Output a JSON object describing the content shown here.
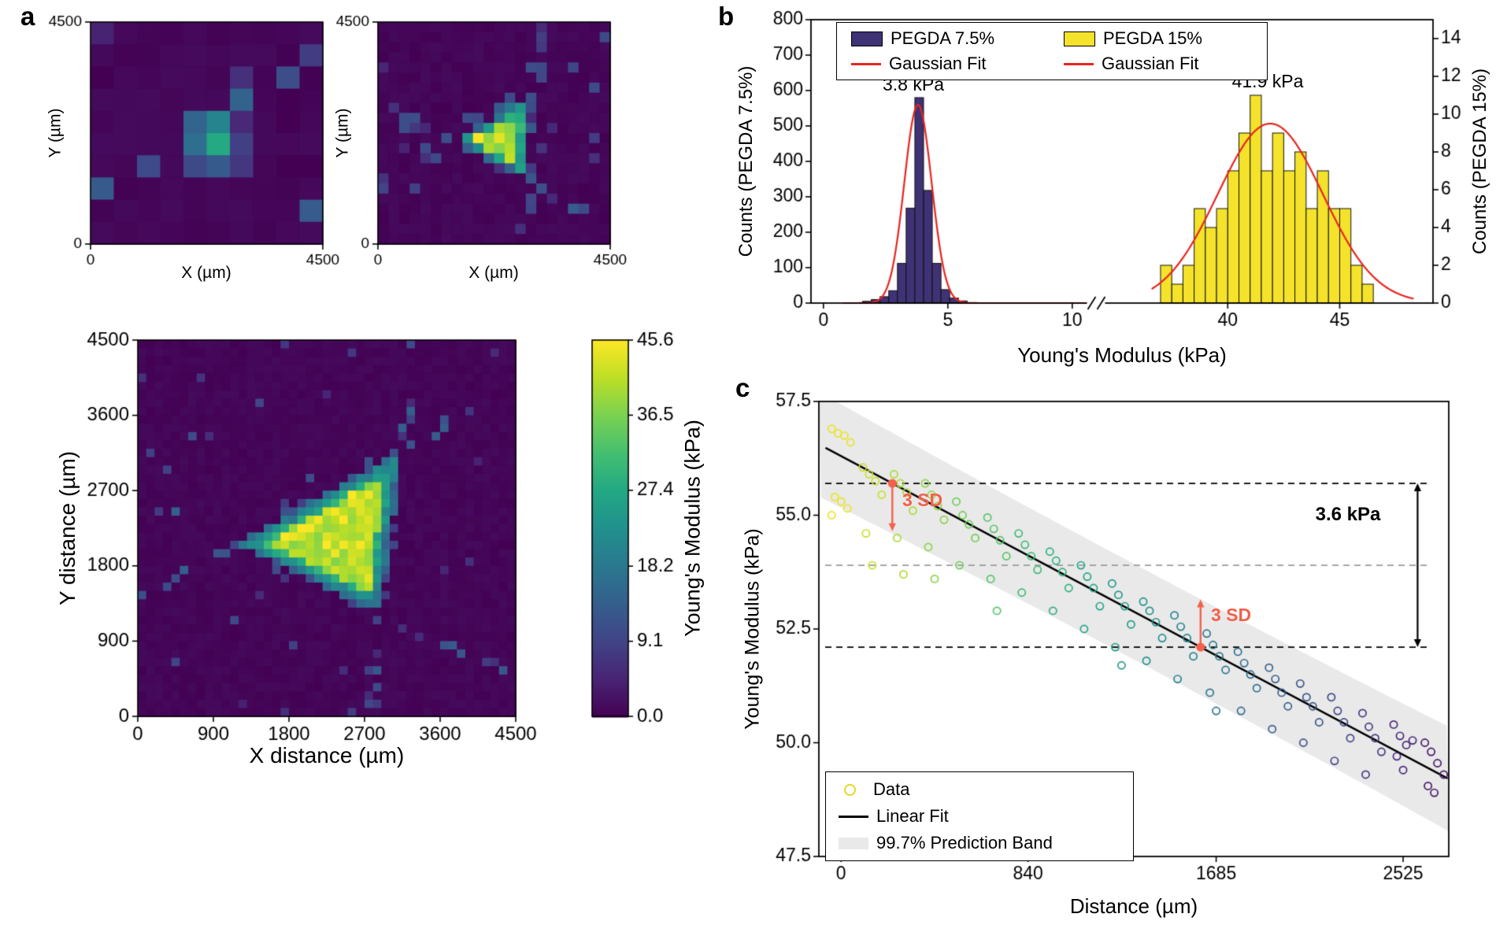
{
  "figure": {
    "panel_a": "a",
    "panel_b": "b",
    "panel_c": "c"
  },
  "colorbar": {
    "title": "Young's Modulus (kPa)",
    "tick_values": [
      0.0,
      9.1,
      18.2,
      27.4,
      36.5,
      45.6
    ],
    "vmin": 0.0,
    "vmax": 45.6
  },
  "chart_data": [
    {
      "id": "map_small_coarse",
      "type": "heatmap",
      "panel": "a",
      "xlabel": "X (µm)",
      "ylabel": "Y (µm)",
      "extent_um": [
        0,
        4500
      ],
      "xticks": [
        0,
        4500
      ],
      "yticks": [
        0,
        4500
      ],
      "grid": 10,
      "vmin_kpa": 0,
      "vmax_kpa": 45.6,
      "triangle_vertices_um": [
        [
          1500,
          2150
        ],
        [
          2950,
          3050
        ],
        [
          2850,
          1350
        ]
      ],
      "edge_band_um": 430,
      "interior_kpa": [
        29,
        45
      ],
      "edge_kpa": [
        13,
        29
      ],
      "seed": 7
    },
    {
      "id": "map_small_fine",
      "type": "heatmap",
      "panel": "a",
      "xlabel": "X (µm)",
      "ylabel": "Y (µm)",
      "extent_um": [
        0,
        4500
      ],
      "xticks": [
        0,
        4500
      ],
      "yticks": [
        0,
        4500
      ],
      "grid": 22,
      "vmin_kpa": 0,
      "vmax_kpa": 45.6,
      "triangle_vertices_um": [
        [
          1400,
          2050
        ],
        [
          3000,
          3100
        ],
        [
          2870,
          1300
        ]
      ],
      "edge_band_um": 215,
      "interior_kpa": [
        36,
        45.6
      ],
      "edge_kpa": [
        12,
        30
      ],
      "seed": 11
    },
    {
      "id": "map_large",
      "type": "heatmap",
      "panel": "a",
      "xlabel": "X distance (µm)",
      "ylabel": "Y distance (µm)",
      "extent_um": [
        0,
        4500
      ],
      "xticks": [
        0,
        900,
        1800,
        2700,
        3600,
        4500
      ],
      "yticks": [
        0,
        900,
        1800,
        2700,
        3600,
        4500
      ],
      "grid": 45,
      "vmin_kpa": 0,
      "vmax_kpa": 45.6,
      "triangle_vertices_um": [
        [
          1150,
          2050
        ],
        [
          3150,
          3200
        ],
        [
          2900,
          1230
        ]
      ],
      "edge_band_um": 175,
      "interior_kpa": [
        37,
        45.6
      ],
      "edge_kpa": [
        12,
        30
      ],
      "seed": 3
    },
    {
      "id": "modulus_histograms",
      "type": "bar",
      "panel": "b",
      "xlabel": "Young's Modulus (kPa)",
      "ylabel_left": "Counts (PEGDA 7.5%)",
      "ylabel_right": "Counts (PEGDA 15%)",
      "ylim_left": [
        0,
        800
      ],
      "yticks_left": [
        0,
        100,
        200,
        300,
        400,
        500,
        600,
        700,
        800
      ],
      "ylim_right": [
        0,
        15
      ],
      "yticks_right": [
        0,
        2,
        4,
        6,
        8,
        10,
        12,
        14
      ],
      "x_axis": {
        "left_segment": {
          "range": [
            0,
            12
          ],
          "ticks": [
            0,
            5,
            10
          ]
        },
        "right_segment": {
          "range": [
            36.5,
            48.5
          ],
          "ticks": [
            40,
            45
          ]
        },
        "break_marker": "//"
      },
      "fit_color": "#e8251f",
      "series": [
        {
          "name": "PEGDA 7.5%",
          "color": "#3f3376",
          "axis": "left",
          "bin_width": 0.35,
          "bin_centers": [
            1.75,
            2.1,
            2.45,
            2.8,
            3.15,
            3.5,
            3.85,
            4.2,
            4.55,
            4.9,
            5.25,
            5.6
          ],
          "counts": [
            5,
            10,
            18,
            35,
            112,
            268,
            580,
            318,
            112,
            38,
            14,
            6
          ],
          "peak_label": "3.8 kPa",
          "gaussian": {
            "center": 3.8,
            "sigma": 0.55,
            "amplitude": 560
          }
        },
        {
          "name": "PEGDA 15%",
          "color": "#f5e32b",
          "axis": "right",
          "bin_width": 0.5,
          "bin_centers": [
            37.25,
            37.75,
            38.25,
            38.75,
            39.25,
            39.75,
            40.25,
            40.75,
            41.25,
            41.75,
            42.25,
            42.75,
            43.25,
            43.75,
            44.25,
            44.75,
            45.25,
            45.75,
            46.25
          ],
          "counts": [
            2,
            1,
            2,
            5,
            4,
            5,
            7,
            9,
            11,
            7,
            9,
            7,
            8,
            5,
            7,
            5,
            5,
            2,
            1
          ],
          "peak_label": "41.9 kPa",
          "gaussian": {
            "center": 41.9,
            "sigma": 2.35,
            "amplitude": 9.5
          }
        }
      ],
      "legend": [
        {
          "label": "PEGDA 7.5%",
          "swatch": "square"
        },
        {
          "label": "PEGDA 15%",
          "swatch": "square"
        },
        {
          "label": "Gaussian Fit",
          "swatch": "line"
        },
        {
          "label": "Gaussian Fit",
          "swatch": "line"
        }
      ]
    },
    {
      "id": "gradient_scatter",
      "type": "scatter",
      "panel": "c",
      "xlabel": "Distance (µm)",
      "ylabel": "Young's Modulus (kPa)",
      "xlim": [
        -100,
        2730
      ],
      "ylim": [
        47.5,
        57.5
      ],
      "xticks": [
        0,
        840,
        1685,
        2525
      ],
      "yticks": [
        47.5,
        50.0,
        52.5,
        55.0,
        57.5
      ],
      "data_marker_color": "#e7d829",
      "accent_color": "#f4604a",
      "fit_line_color": "#000000",
      "linear_fit": {
        "y_at_x0_kpa": 56.3,
        "slope_kpa_per_um": -0.0026
      },
      "prediction_band": {
        "halfwidth_kpa": 1.05,
        "color": "#e9e9e9",
        "label": "99.7% Prediction Band"
      },
      "dashed_lines": {
        "upper_kpa": 55.7,
        "lower_kpa": 52.1,
        "mid_kpa": 53.9
      },
      "sd_markers": [
        {
          "x_um": 230,
          "from_kpa": 55.7,
          "to_kpa": 54.65,
          "label": "3 SD",
          "direction": "down"
        },
        {
          "x_um": 1615,
          "from_kpa": 52.1,
          "to_kpa": 53.15,
          "label": "3 SD",
          "direction": "up"
        }
      ],
      "gap_annotation": {
        "label": "3.6 kPa",
        "x_um": 2590,
        "from_kpa": 55.7,
        "to_kpa": 52.1
      },
      "clusters": [
        {
          "x": 0,
          "values": [
            56.9,
            56.8,
            56.75,
            56.6,
            55.4,
            55.3,
            55.15,
            55.0
          ]
        },
        {
          "x": 140,
          "values": [
            56.05,
            55.9,
            55.75,
            55.45,
            54.6,
            53.9
          ]
        },
        {
          "x": 280,
          "values": [
            55.9,
            55.7,
            55.5,
            55.1,
            54.5,
            53.7
          ]
        },
        {
          "x": 420,
          "values": [
            55.7,
            55.45,
            55.2,
            54.9,
            54.3,
            53.6
          ]
        },
        {
          "x": 560,
          "values": [
            55.3,
            55.0,
            54.8,
            54.5,
            53.9
          ]
        },
        {
          "x": 700,
          "values": [
            54.95,
            54.7,
            54.45,
            54.1,
            53.6,
            52.9
          ]
        },
        {
          "x": 840,
          "values": [
            54.6,
            54.35,
            54.1,
            53.8,
            53.3
          ]
        },
        {
          "x": 980,
          "values": [
            54.2,
            54.0,
            53.75,
            53.4,
            52.9
          ]
        },
        {
          "x": 1120,
          "values": [
            53.9,
            53.65,
            53.4,
            53.0,
            52.5
          ]
        },
        {
          "x": 1260,
          "values": [
            53.5,
            53.25,
            53.0,
            52.6,
            52.1,
            51.7
          ]
        },
        {
          "x": 1400,
          "values": [
            53.1,
            52.9,
            52.65,
            52.3,
            51.8
          ]
        },
        {
          "x": 1540,
          "values": [
            52.8,
            52.55,
            52.3,
            51.9,
            51.4
          ]
        },
        {
          "x": 1685,
          "values": [
            52.4,
            52.15,
            51.9,
            51.6,
            51.1,
            50.7
          ]
        },
        {
          "x": 1825,
          "values": [
            52.0,
            51.75,
            51.5,
            51.2,
            50.7
          ]
        },
        {
          "x": 1965,
          "values": [
            51.65,
            51.4,
            51.1,
            50.8,
            50.3
          ]
        },
        {
          "x": 2105,
          "values": [
            51.3,
            51.0,
            50.8,
            50.45,
            50.0
          ]
        },
        {
          "x": 2245,
          "values": [
            51.0,
            50.7,
            50.45,
            50.1,
            49.6
          ]
        },
        {
          "x": 2385,
          "values": [
            50.65,
            50.35,
            50.1,
            49.8,
            49.3
          ]
        },
        {
          "x": 2525,
          "values": [
            50.4,
            50.15,
            49.95,
            50.05,
            49.7,
            49.4
          ]
        },
        {
          "x": 2665,
          "values": [
            50.0,
            49.8,
            49.55,
            49.3,
            49.05,
            48.9
          ]
        }
      ],
      "legend": [
        {
          "label": "Data",
          "swatch": "circle"
        },
        {
          "label": "Linear Fit",
          "swatch": "line"
        },
        {
          "label": "99.7% Prediction Band",
          "swatch": "band"
        }
      ]
    }
  ]
}
